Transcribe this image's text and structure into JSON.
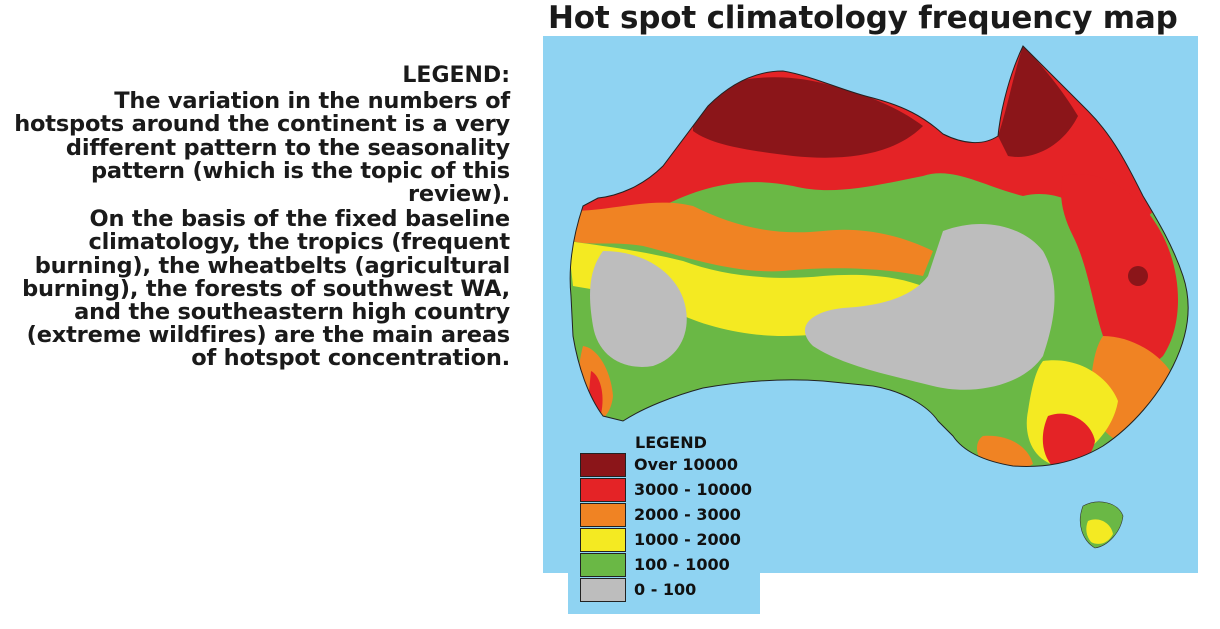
{
  "title": "Hot spot climatology frequency map",
  "description": {
    "heading": "LEGEND:",
    "paragraph_1": "The variation in the numbers of hotspots around the continent is a very different pattern to the seasonality pattern (which is the topic of this review).",
    "paragraph_2": "On the basis of the fixed baseline climatology, the tropics (frequent burning), the wheatbelts (agricultural burning), the forests of southwest WA, and the southeastern high country (extreme wildfires) are the main areas of hotspot concentration."
  },
  "map": {
    "ocean_color": "#8fd3f2",
    "legend": {
      "title": "LEGEND",
      "items": [
        {
          "label": "Over 10000",
          "color": "#8b1519"
        },
        {
          "label": "3000 - 10000",
          "color": "#e42326"
        },
        {
          "label": "2000 - 3000",
          "color": "#f08323"
        },
        {
          "label": "1000 - 2000",
          "color": "#f4ea22"
        },
        {
          "label": "100 - 1000",
          "color": "#6ab845"
        },
        {
          "label": "0 - 100",
          "color": "#bdbdbd"
        }
      ]
    }
  }
}
